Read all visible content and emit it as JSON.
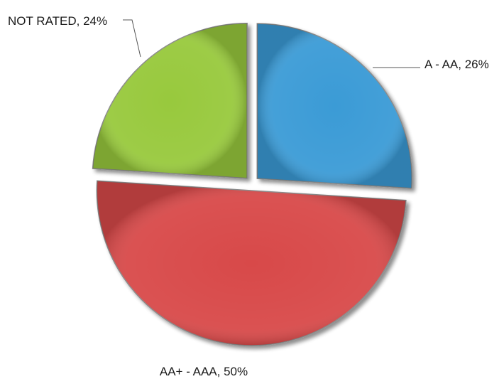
{
  "chart_data": {
    "type": "pie",
    "exploded": true,
    "slices": [
      {
        "label": "A - AA",
        "value": 26,
        "text": "A - AA, 26%",
        "color": "#3a9bd6"
      },
      {
        "label": "AA+ - AAA",
        "value": 50,
        "text": "AA+ - AAA, 50%",
        "color": "#d84848"
      },
      {
        "label": "NOT RATED",
        "value": 24,
        "text": "NOT RATED, 24%",
        "color": "#98c93c"
      }
    ]
  }
}
